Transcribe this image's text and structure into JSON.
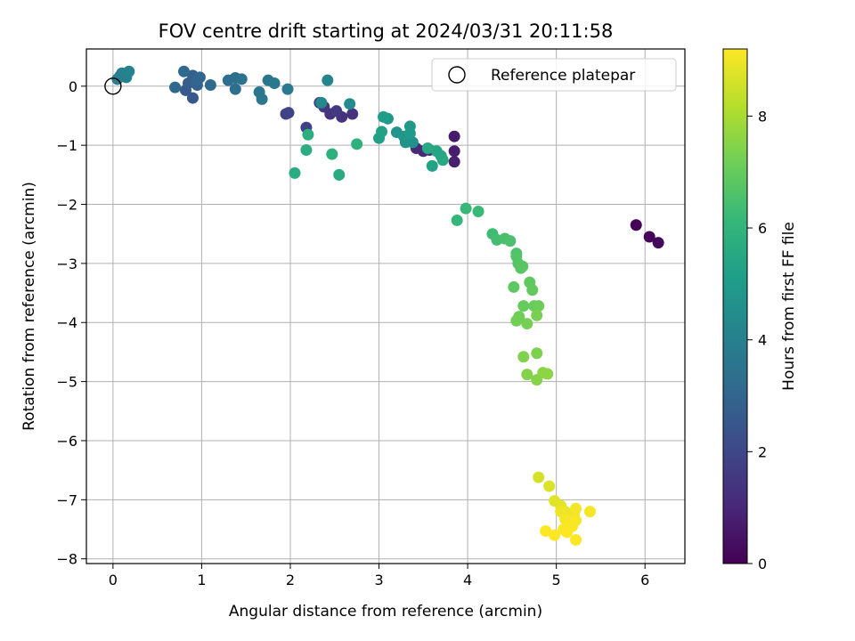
{
  "chart_data": {
    "type": "scatter",
    "title": "FOV centre drift starting at 2024/03/31 20:11:58",
    "xlabel": "Angular distance from reference (arcmin)",
    "ylabel": "Rotation from reference (arcmin)",
    "xlim": [
      -0.3,
      6.45
    ],
    "ylim": [
      -8.08,
      0.63
    ],
    "xticks": [
      0,
      1,
      2,
      3,
      4,
      5,
      6
    ],
    "yticks": [
      0,
      -1,
      -2,
      -3,
      -4,
      -5,
      -6,
      -7,
      -8
    ],
    "grid": true,
    "legend": {
      "position": "top-right",
      "entries": [
        "Reference platepar"
      ]
    },
    "colorbar": {
      "label": "Hours from first FF file",
      "colormap": "viridis",
      "range": [
        0,
        9.2
      ],
      "ticks": [
        0,
        2,
        4,
        6,
        8
      ],
      "stops": [
        "#440154",
        "#482878",
        "#3e4989",
        "#31688e",
        "#26828e",
        "#1f9e89",
        "#35b779",
        "#6ece58",
        "#b5de2b",
        "#fde725"
      ]
    },
    "reference": {
      "name": "Reference platepar",
      "x": 0,
      "y": 0
    },
    "series": [
      {
        "values_note_key": "points",
        "points": [
          [
            5.9,
            -2.35,
            0.1
          ],
          [
            6.05,
            -2.55,
            0.15
          ],
          [
            6.15,
            -2.65,
            0.2
          ],
          [
            3.85,
            -0.85,
            0.7
          ],
          [
            3.85,
            -1.1,
            0.75
          ],
          [
            3.85,
            -1.28,
            0.8
          ],
          [
            3.5,
            -1.1,
            1.0
          ],
          [
            3.42,
            -1.05,
            1.1
          ],
          [
            3.57,
            -1.08,
            1.15
          ],
          [
            2.7,
            -0.47,
            1.3
          ],
          [
            2.58,
            -0.52,
            1.35
          ],
          [
            2.45,
            -0.47,
            1.4
          ],
          [
            2.38,
            -0.35,
            1.5
          ],
          [
            2.52,
            -0.42,
            1.55
          ],
          [
            2.33,
            -0.28,
            1.7
          ],
          [
            1.95,
            -0.47,
            1.8
          ],
          [
            1.98,
            -0.45,
            1.85
          ],
          [
            2.18,
            -0.7,
            1.9
          ],
          [
            0.9,
            -0.2,
            2.5
          ],
          [
            0.82,
            -0.07,
            2.6
          ],
          [
            0.85,
            0.05,
            2.7
          ],
          [
            0.9,
            0.18,
            2.8
          ],
          [
            0.95,
            0.02,
            2.9
          ],
          [
            0.98,
            0.15,
            3.0
          ],
          [
            0.95,
            0.1,
            3.05
          ],
          [
            0.7,
            -0.02,
            3.1
          ],
          [
            0.8,
            0.25,
            3.15
          ],
          [
            1.1,
            0.02,
            3.2
          ],
          [
            1.3,
            0.1,
            3.3
          ],
          [
            1.38,
            -0.05,
            3.35
          ],
          [
            1.38,
            0.14,
            3.4
          ],
          [
            1.45,
            0.12,
            3.45
          ],
          [
            1.75,
            0.1,
            3.55
          ],
          [
            1.65,
            -0.1,
            3.6
          ],
          [
            1.68,
            -0.22,
            3.65
          ],
          [
            1.82,
            0.05,
            3.7
          ],
          [
            1.97,
            -0.05,
            3.75
          ],
          [
            0.05,
            0.12,
            3.9
          ],
          [
            0.08,
            0.17,
            3.95
          ],
          [
            0.1,
            0.22,
            4.0
          ],
          [
            0.15,
            0.15,
            4.05
          ],
          [
            0.18,
            0.25,
            4.1
          ],
          [
            2.42,
            0.1,
            4.2
          ],
          [
            2.35,
            -0.28,
            4.3
          ],
          [
            2.67,
            -0.3,
            4.4
          ],
          [
            3.38,
            -0.95,
            4.6
          ],
          [
            3.35,
            -0.92,
            4.65
          ],
          [
            3.3,
            -0.95,
            4.7
          ],
          [
            3.2,
            -0.78,
            4.8
          ],
          [
            3.28,
            -0.85,
            4.85
          ],
          [
            3.35,
            -0.68,
            4.9
          ],
          [
            3.35,
            -0.8,
            4.95
          ],
          [
            3.1,
            -0.55,
            5.0
          ],
          [
            3.05,
            -0.52,
            5.1
          ],
          [
            3.0,
            -0.88,
            5.2
          ],
          [
            3.03,
            -0.77,
            5.25
          ],
          [
            3.6,
            -1.35,
            5.3
          ],
          [
            3.65,
            -1.1,
            5.4
          ],
          [
            3.7,
            -1.18,
            5.45
          ],
          [
            3.72,
            -1.25,
            5.5
          ],
          [
            3.55,
            -1.05,
            5.55
          ],
          [
            2.55,
            -1.5,
            5.6
          ],
          [
            2.05,
            -1.47,
            5.65
          ],
          [
            2.18,
            -1.08,
            5.7
          ],
          [
            2.2,
            -0.82,
            5.75
          ],
          [
            2.47,
            -1.15,
            5.8
          ],
          [
            2.75,
            -0.98,
            5.85
          ],
          [
            3.88,
            -2.27,
            6.1
          ],
          [
            3.98,
            -2.07,
            6.15
          ],
          [
            4.12,
            -2.12,
            6.2
          ],
          [
            4.28,
            -2.5,
            6.3
          ],
          [
            4.33,
            -2.6,
            6.4
          ],
          [
            4.42,
            -2.58,
            6.5
          ],
          [
            4.48,
            -2.62,
            6.55
          ],
          [
            4.55,
            -2.83,
            6.6
          ],
          [
            4.55,
            -2.88,
            6.65
          ],
          [
            4.57,
            -3.0,
            6.7
          ],
          [
            4.6,
            -3.08,
            6.75
          ],
          [
            4.62,
            -3.05,
            6.8
          ],
          [
            4.52,
            -3.4,
            6.85
          ],
          [
            4.7,
            -3.32,
            6.9
          ],
          [
            4.73,
            -3.45,
            6.95
          ],
          [
            4.63,
            -3.72,
            7.0
          ],
          [
            4.75,
            -3.72,
            7.05
          ],
          [
            4.8,
            -3.72,
            7.1
          ],
          [
            4.58,
            -3.9,
            7.15
          ],
          [
            4.55,
            -3.97,
            7.2
          ],
          [
            4.67,
            -4.02,
            7.25
          ],
          [
            4.78,
            -3.88,
            7.3
          ],
          [
            4.78,
            -4.52,
            7.35
          ],
          [
            4.63,
            -4.58,
            7.4
          ],
          [
            4.67,
            -4.88,
            7.45
          ],
          [
            4.78,
            -4.97,
            7.5
          ],
          [
            4.85,
            -4.85,
            7.55
          ],
          [
            4.9,
            -4.87,
            7.6
          ],
          [
            4.8,
            -6.62,
            8.6
          ],
          [
            4.92,
            -6.77,
            8.7
          ],
          [
            4.98,
            -7.02,
            8.8
          ],
          [
            5.05,
            -7.1,
            8.85
          ],
          [
            5.1,
            -7.2,
            8.9
          ],
          [
            5.12,
            -7.3,
            8.95
          ],
          [
            5.2,
            -7.25,
            9.0
          ],
          [
            5.22,
            -7.15,
            9.05
          ],
          [
            5.38,
            -7.2,
            9.1
          ],
          [
            5.15,
            -7.42,
            9.1
          ],
          [
            5.22,
            -7.35,
            9.15
          ],
          [
            5.18,
            -7.45,
            9.15
          ],
          [
            5.08,
            -7.5,
            9.15
          ],
          [
            5.12,
            -7.55,
            9.2
          ],
          [
            4.88,
            -7.53,
            9.2
          ],
          [
            4.98,
            -7.6,
            9.2
          ],
          [
            5.22,
            -7.68,
            9.2
          ],
          [
            5.1,
            -7.33,
            9.1
          ],
          [
            5.05,
            -7.2,
            9.0
          ]
        ]
      }
    ]
  }
}
